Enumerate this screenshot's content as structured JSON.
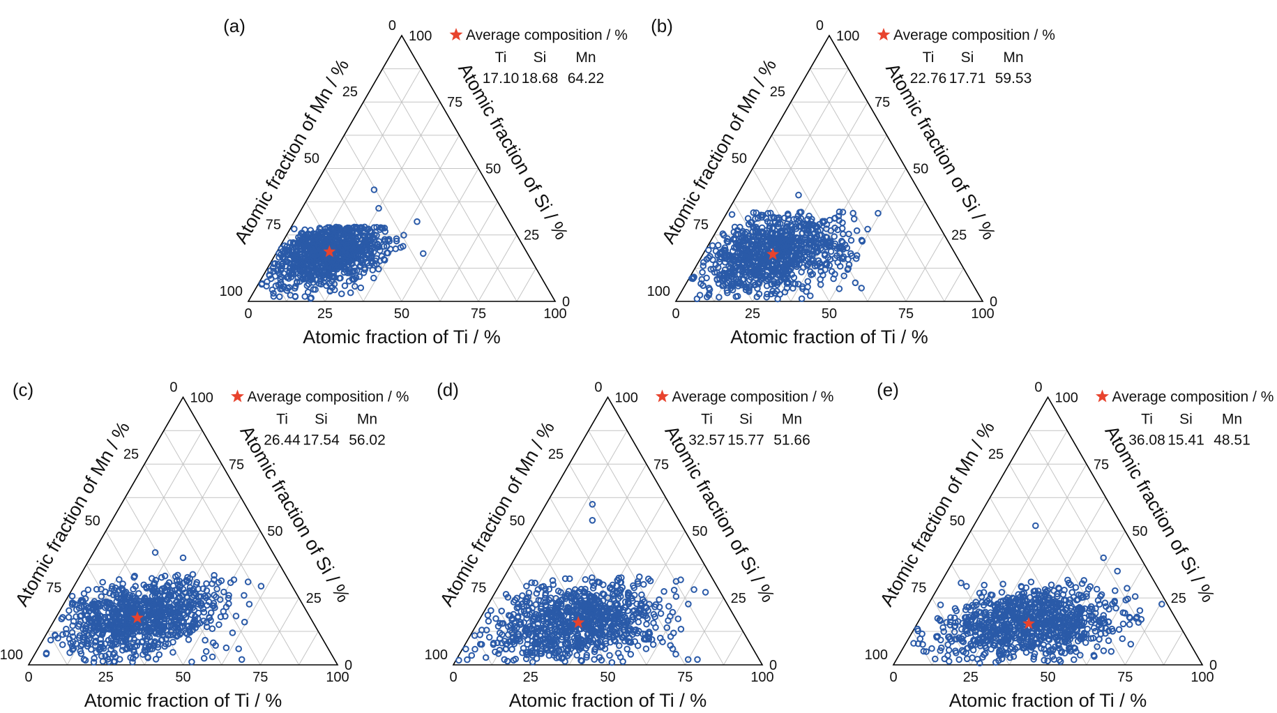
{
  "figure": {
    "legend_title": "Average composition / %",
    "legend_columns": [
      "Ti",
      "Si",
      "Mn"
    ]
  },
  "colors": {
    "points": "#2a5aa8",
    "star": "#e8432d",
    "grid": "#c4c4c4",
    "axes": "#000000"
  },
  "chart_data": [
    {
      "type": "scatter",
      "subtype": "ternary",
      "panel_label": "(a)",
      "components": [
        "Ti",
        "Si",
        "Mn"
      ],
      "xlabel": "Atomic fraction of Ti / %",
      "left_axis_label": "Atomic fraction of Mn / %",
      "right_axis_label": "Atomic fraction of Si / %",
      "ticks": [
        0,
        25,
        50,
        75,
        100
      ],
      "average_composition": {
        "Ti": "17.10",
        "Si": "18.68",
        "Mn": "64.22"
      },
      "cloud": {
        "center": [
          17.1,
          18.68
        ],
        "spread": [
          9,
          7
        ],
        "min": [
          0,
          0
        ],
        "max": [
          44,
          28
        ],
        "count": 900
      },
      "outliers": [
        [
          20,
          42
        ],
        [
          40,
          30
        ],
        [
          35,
          17
        ],
        [
          48,
          18
        ],
        [
          30,
          13
        ],
        [
          32,
          12
        ],
        [
          25,
          35
        ]
      ]
    },
    {
      "type": "scatter",
      "subtype": "ternary",
      "panel_label": "(b)",
      "components": [
        "Ti",
        "Si",
        "Mn"
      ],
      "xlabel": "Atomic fraction of Ti / %",
      "left_axis_label": "Atomic fraction of Mn / %",
      "right_axis_label": "Atomic fraction of Si / %",
      "ticks": [
        0,
        25,
        50,
        75,
        100
      ],
      "average_composition": {
        "Ti": "22.76",
        "Si": "17.71",
        "Mn": "59.53"
      },
      "cloud": {
        "center": [
          22.76,
          17.71
        ],
        "spread": [
          11,
          8
        ],
        "min": [
          0,
          0
        ],
        "max": [
          52,
          34
        ],
        "count": 900
      },
      "outliers": [
        [
          55,
          7
        ],
        [
          58,
          5
        ],
        [
          50,
          12
        ],
        [
          48,
          18
        ],
        [
          20,
          40
        ]
      ]
    },
    {
      "type": "scatter",
      "subtype": "ternary",
      "panel_label": "(c)",
      "components": [
        "Ti",
        "Si",
        "Mn"
      ],
      "xlabel": "Atomic fraction of Ti / %",
      "left_axis_label": "Atomic fraction of Mn / %",
      "right_axis_label": "Atomic fraction of Si / %",
      "ticks": [
        0,
        25,
        50,
        75,
        100
      ],
      "average_composition": {
        "Ti": "26.44",
        "Si": "17.54",
        "Mn": "56.02"
      },
      "cloud": {
        "center": [
          26.44,
          17.54
        ],
        "spread": [
          13,
          8
        ],
        "min": [
          0,
          0
        ],
        "max": [
          62,
          34
        ],
        "count": 900
      },
      "outliers": [
        [
          20,
          42
        ],
        [
          30,
          40
        ],
        [
          60,
          12
        ],
        [
          65,
          6
        ],
        [
          58,
          3
        ],
        [
          55,
          5
        ],
        [
          68,
          2
        ]
      ]
    },
    {
      "type": "scatter",
      "subtype": "ternary",
      "panel_label": "(d)",
      "components": [
        "Ti",
        "Si",
        "Mn"
      ],
      "xlabel": "Atomic fraction of Ti / %",
      "left_axis_label": "Atomic fraction of Mn / %",
      "right_axis_label": "Atomic fraction of Si / %",
      "ticks": [
        0,
        25,
        50,
        75,
        100
      ],
      "average_composition": {
        "Ti": "32.57",
        "Si": "15.77",
        "Mn": "51.66"
      },
      "cloud": {
        "center": [
          32.57,
          15.77
        ],
        "spread": [
          14,
          8
        ],
        "min": [
          0,
          0
        ],
        "max": [
          72,
          33
        ],
        "count": 900
      },
      "outliers": [
        [
          15,
          60
        ],
        [
          18,
          54
        ],
        [
          62,
          10
        ],
        [
          70,
          4
        ],
        [
          75,
          2
        ],
        [
          78,
          2
        ],
        [
          68,
          6
        ]
      ]
    },
    {
      "type": "scatter",
      "subtype": "ternary",
      "panel_label": "(e)",
      "components": [
        "Ti",
        "Si",
        "Mn"
      ],
      "xlabel": "Atomic fraction of Ti / %",
      "left_axis_label": "Atomic fraction of Mn / %",
      "right_axis_label": "Atomic fraction of Si / %",
      "ticks": [
        0,
        25,
        50,
        75,
        100
      ],
      "average_composition": {
        "Ti": "36.08",
        "Si": "15.41",
        "Mn": "48.51"
      },
      "cloud": {
        "center": [
          36.08,
          15.41
        ],
        "spread": [
          15,
          7
        ],
        "min": [
          0,
          0
        ],
        "max": [
          76,
          32
        ],
        "count": 900
      },
      "outliers": [
        [
          20,
          52
        ],
        [
          48,
          40
        ],
        [
          55,
          35
        ],
        [
          68,
          5
        ]
      ]
    }
  ]
}
